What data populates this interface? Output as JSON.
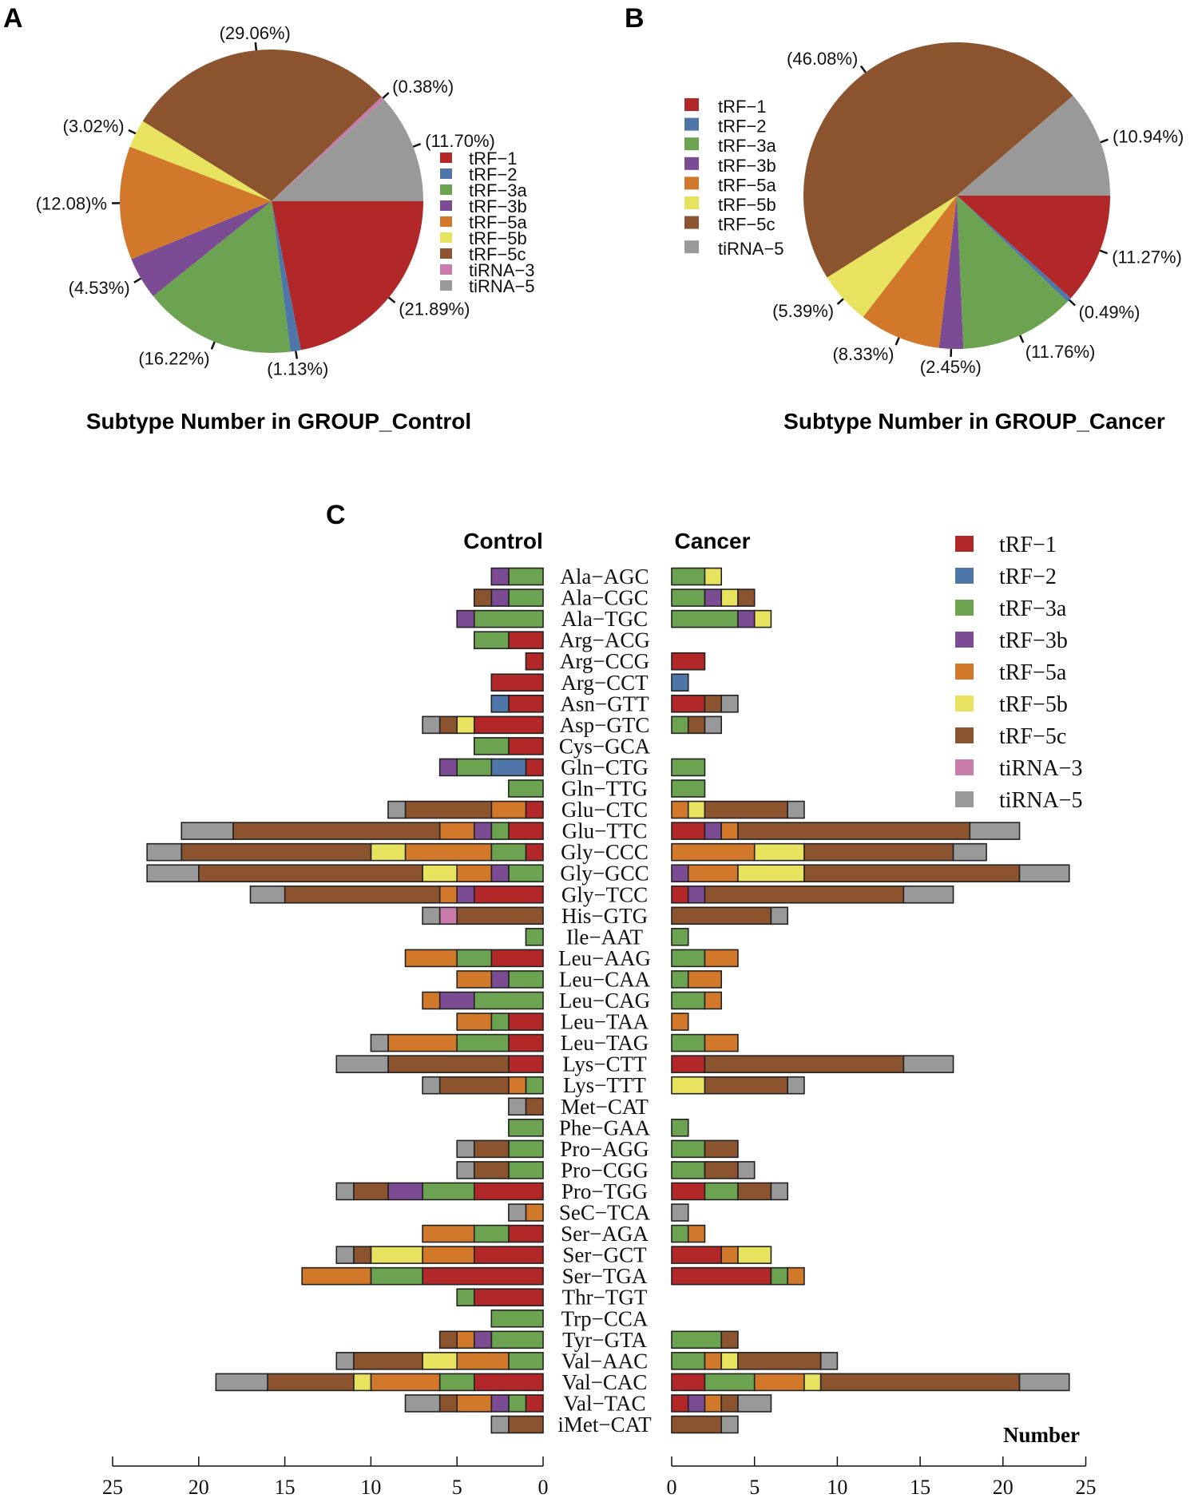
{
  "panels": {
    "a": "A",
    "b": "B",
    "c": "C"
  },
  "colors": {
    "tRF-1": "#B22727",
    "tRF-2": "#4E76A8",
    "tRF-3a": "#6CA350",
    "tRF-3b": "#7B4C93",
    "tRF-5a": "#D2782B",
    "tRF-5b": "#E8E35E",
    "tRF-5c": "#8B542E",
    "tiRNA-3": "#C97BAC",
    "tiRNA-5": "#999999"
  },
  "chart_data": [
    {
      "type": "pie",
      "title": "Subtype Number in GROUP_Control",
      "labels": [
        "tRF-1",
        "tRF-2",
        "tRF-3a",
        "tRF-3b",
        "tRF-5a",
        "tRF-5b",
        "tRF-5c",
        "tiRNA-3",
        "tiRNA-5"
      ],
      "legend": [
        "tRF−1",
        "tRF−2",
        "tRF−3a",
        "tRF−3b",
        "tRF−5a",
        "tRF−5b",
        "tRF−5c",
        "tiRNA−3",
        "tiRNA−5"
      ],
      "values": [
        21.89,
        1.13,
        16.22,
        4.53,
        12.08,
        3.02,
        29.06,
        0.38,
        11.7
      ],
      "value_labels": [
        "(21.89%)",
        "(1.13%)",
        "(16.22%)",
        "(4.53%)",
        "(12.08)%",
        "(3.02%)",
        "(29.06%)",
        "(0.38%)",
        "(11.70%)"
      ],
      "legend_position": "right"
    },
    {
      "type": "pie",
      "title": "Subtype Number in GROUP_Cancer",
      "labels": [
        "tRF-1",
        "tRF-2",
        "tRF-3a",
        "tRF-3b",
        "tRF-5a",
        "tRF-5b",
        "tRF-5c",
        "tiRNA-5"
      ],
      "legend": [
        "tRF−1",
        "tRF−2",
        "tRF−3a",
        "tRF−3b",
        "tRF−5a",
        "tRF−5b",
        "tRF−5c",
        "tiRNA−5"
      ],
      "values": [
        11.27,
        0.49,
        11.76,
        2.45,
        8.33,
        5.39,
        46.08,
        10.94
      ],
      "value_labels": [
        "(11.27%)",
        "(0.49%)",
        "(11.76%)",
        "(2.45%)",
        "(8.33%)",
        "(5.39%)",
        "(46.08%)",
        "(10.94%)"
      ],
      "legend_position": "left"
    },
    {
      "type": "bar",
      "orientation": "horizontal-stacked-mirrored",
      "groups": [
        "Control",
        "Cancer"
      ],
      "xlabel": "Number",
      "xlim": [
        0,
        25
      ],
      "ticks": [
        0,
        5,
        10,
        15,
        20,
        25
      ],
      "series_names": [
        "tRF-1",
        "tRF-2",
        "tRF-3a",
        "tRF-3b",
        "tRF-5a",
        "tRF-5b",
        "tRF-5c",
        "tiRNA-3",
        "tiRNA-5"
      ],
      "legend": [
        "tRF−1",
        "tRF−2",
        "tRF−3a",
        "tRF−3b",
        "tRF−5a",
        "tRF−5b",
        "tRF−5c",
        "tiRNA−3",
        "tiRNA−5"
      ],
      "categories": [
        "Ala−AGC",
        "Ala−CGC",
        "Ala−TGC",
        "Arg−ACG",
        "Arg−CCG",
        "Arg−CCT",
        "Asn−GTT",
        "Asp−GTC",
        "Cys−GCA",
        "Gln−CTG",
        "Gln−TTG",
        "Glu−CTC",
        "Glu−TTC",
        "Gly−CCC",
        "Gly−GCC",
        "Gly−TCC",
        "His−GTG",
        "Ile−AAT",
        "Leu−AAG",
        "Leu−CAA",
        "Leu−CAG",
        "Leu−TAA",
        "Leu−TAG",
        "Lys−CTT",
        "Lys−TTT",
        "Met−CAT",
        "Phe−GAA",
        "Pro−AGG",
        "Pro−CGG",
        "Pro−TGG",
        "SeC−TCA",
        "Ser−AGA",
        "Ser−GCT",
        "Ser−TGA",
        "Thr−TGT",
        "Trp−CCA",
        "Tyr−GTA",
        "Val−AAC",
        "Val−CAC",
        "Val−TAC",
        "iMet−CAT"
      ],
      "control": [
        [
          0,
          0,
          2,
          1,
          0,
          0,
          0,
          0,
          0
        ],
        [
          0,
          0,
          2,
          1,
          0,
          0,
          1,
          0,
          0
        ],
        [
          0,
          0,
          4,
          1,
          0,
          0,
          0,
          0,
          0
        ],
        [
          2,
          0,
          2,
          0,
          0,
          0,
          0,
          0,
          0
        ],
        [
          1,
          0,
          0,
          0,
          0,
          0,
          0,
          0,
          0
        ],
        [
          3,
          0,
          0,
          0,
          0,
          0,
          0,
          0,
          0
        ],
        [
          2,
          1,
          0,
          0,
          0,
          0,
          0,
          0,
          0
        ],
        [
          4,
          0,
          0,
          0,
          0,
          1,
          1,
          0,
          1
        ],
        [
          2,
          0,
          2,
          0,
          0,
          0,
          0,
          0,
          0
        ],
        [
          1,
          2,
          2,
          1,
          0,
          0,
          0,
          0,
          0
        ],
        [
          0,
          0,
          2,
          0,
          0,
          0,
          0,
          0,
          0
        ],
        [
          1,
          0,
          0,
          0,
          2,
          0,
          5,
          0,
          1
        ],
        [
          2,
          0,
          1,
          1,
          2,
          0,
          12,
          0,
          3
        ],
        [
          1,
          0,
          2,
          0,
          5,
          2,
          11,
          0,
          2
        ],
        [
          0,
          0,
          2,
          1,
          2,
          2,
          13,
          0,
          3
        ],
        [
          4,
          0,
          0,
          1,
          1,
          0,
          9,
          0,
          2
        ],
        [
          0,
          0,
          0,
          0,
          0,
          0,
          5,
          1,
          1
        ],
        [
          0,
          0,
          1,
          0,
          0,
          0,
          0,
          0,
          0
        ],
        [
          3,
          0,
          2,
          0,
          3,
          0,
          0,
          0,
          0
        ],
        [
          0,
          0,
          2,
          1,
          2,
          0,
          0,
          0,
          0
        ],
        [
          0,
          0,
          4,
          2,
          1,
          0,
          0,
          0,
          0
        ],
        [
          2,
          0,
          1,
          0,
          2,
          0,
          0,
          0,
          0
        ],
        [
          2,
          0,
          3,
          0,
          4,
          0,
          0,
          0,
          1
        ],
        [
          2,
          0,
          0,
          0,
          0,
          0,
          7,
          0,
          3
        ],
        [
          0,
          0,
          1,
          0,
          1,
          0,
          4,
          0,
          1
        ],
        [
          0,
          0,
          0,
          0,
          0,
          0,
          1,
          0,
          1
        ],
        [
          0,
          0,
          2,
          0,
          0,
          0,
          0,
          0,
          0
        ],
        [
          0,
          0,
          2,
          0,
          0,
          0,
          2,
          0,
          1
        ],
        [
          0,
          0,
          2,
          0,
          0,
          0,
          2,
          0,
          1
        ],
        [
          4,
          0,
          3,
          2,
          0,
          0,
          2,
          0,
          1
        ],
        [
          0,
          0,
          0,
          0,
          1,
          0,
          0,
          0,
          1
        ],
        [
          2,
          0,
          2,
          0,
          3,
          0,
          0,
          0,
          0
        ],
        [
          4,
          0,
          0,
          0,
          3,
          3,
          1,
          0,
          1
        ],
        [
          7,
          0,
          3,
          0,
          4,
          0,
          0,
          0,
          0
        ],
        [
          4,
          0,
          1,
          0,
          0,
          0,
          0,
          0,
          0
        ],
        [
          0,
          0,
          3,
          0,
          0,
          0,
          0,
          0,
          0
        ],
        [
          0,
          0,
          3,
          1,
          1,
          0,
          1,
          0,
          0
        ],
        [
          0,
          0,
          2,
          0,
          3,
          2,
          4,
          0,
          1
        ],
        [
          4,
          0,
          2,
          0,
          4,
          1,
          5,
          0,
          3
        ],
        [
          1,
          0,
          1,
          1,
          2,
          0,
          1,
          0,
          2
        ],
        [
          0,
          0,
          0,
          0,
          0,
          0,
          2,
          0,
          1
        ]
      ],
      "cancer": [
        [
          0,
          0,
          2,
          0,
          0,
          1,
          0,
          0,
          0
        ],
        [
          0,
          0,
          2,
          1,
          0,
          1,
          1,
          0,
          0
        ],
        [
          0,
          0,
          4,
          1,
          0,
          1,
          0,
          0,
          0
        ],
        [
          0,
          0,
          0,
          0,
          0,
          0,
          0,
          0,
          0
        ],
        [
          2,
          0,
          0,
          0,
          0,
          0,
          0,
          0,
          0
        ],
        [
          0,
          1,
          0,
          0,
          0,
          0,
          0,
          0,
          0
        ],
        [
          2,
          0,
          0,
          0,
          0,
          0,
          1,
          0,
          1
        ],
        [
          0,
          0,
          1,
          0,
          0,
          0,
          1,
          0,
          1
        ],
        [
          0,
          0,
          0,
          0,
          0,
          0,
          0,
          0,
          0
        ],
        [
          0,
          0,
          2,
          0,
          0,
          0,
          0,
          0,
          0
        ],
        [
          0,
          0,
          2,
          0,
          0,
          0,
          0,
          0,
          0
        ],
        [
          0,
          0,
          0,
          0,
          1,
          1,
          5,
          0,
          1
        ],
        [
          2,
          0,
          0,
          1,
          1,
          0,
          14,
          0,
          3
        ],
        [
          0,
          0,
          0,
          0,
          5,
          3,
          9,
          0,
          2
        ],
        [
          0,
          0,
          0,
          1,
          3,
          4,
          13,
          0,
          3
        ],
        [
          1,
          0,
          0,
          1,
          0,
          0,
          12,
          0,
          3
        ],
        [
          0,
          0,
          0,
          0,
          0,
          0,
          6,
          0,
          1
        ],
        [
          0,
          0,
          1,
          0,
          0,
          0,
          0,
          0,
          0
        ],
        [
          0,
          0,
          2,
          0,
          2,
          0,
          0,
          0,
          0
        ],
        [
          0,
          0,
          1,
          0,
          2,
          0,
          0,
          0,
          0
        ],
        [
          0,
          0,
          2,
          0,
          1,
          0,
          0,
          0,
          0
        ],
        [
          0,
          0,
          0,
          0,
          1,
          0,
          0,
          0,
          0
        ],
        [
          0,
          0,
          2,
          0,
          2,
          0,
          0,
          0,
          0
        ],
        [
          2,
          0,
          0,
          0,
          0,
          0,
          12,
          0,
          3
        ],
        [
          0,
          0,
          0,
          0,
          0,
          2,
          5,
          0,
          1
        ],
        [
          0,
          0,
          0,
          0,
          0,
          0,
          0,
          0,
          0
        ],
        [
          0,
          0,
          1,
          0,
          0,
          0,
          0,
          0,
          0
        ],
        [
          0,
          0,
          2,
          0,
          0,
          0,
          2,
          0,
          0
        ],
        [
          0,
          0,
          2,
          0,
          0,
          0,
          2,
          0,
          1
        ],
        [
          2,
          0,
          2,
          0,
          0,
          0,
          2,
          0,
          1
        ],
        [
          0,
          0,
          0,
          0,
          0,
          0,
          0,
          0,
          1
        ],
        [
          0,
          0,
          1,
          0,
          1,
          0,
          0,
          0,
          0
        ],
        [
          3,
          0,
          0,
          0,
          1,
          2,
          0,
          0,
          0
        ],
        [
          6,
          0,
          1,
          0,
          1,
          0,
          0,
          0,
          0
        ],
        [
          0,
          0,
          0,
          0,
          0,
          0,
          0,
          0,
          0
        ],
        [
          0,
          0,
          0,
          0,
          0,
          0,
          0,
          0,
          0
        ],
        [
          0,
          0,
          3,
          0,
          0,
          0,
          1,
          0,
          0
        ],
        [
          0,
          0,
          2,
          0,
          1,
          1,
          5,
          0,
          1
        ],
        [
          2,
          0,
          3,
          0,
          3,
          1,
          12,
          0,
          3
        ],
        [
          1,
          0,
          0,
          1,
          1,
          0,
          1,
          0,
          2
        ],
        [
          0,
          0,
          0,
          0,
          0,
          0,
          3,
          0,
          1
        ]
      ]
    }
  ]
}
